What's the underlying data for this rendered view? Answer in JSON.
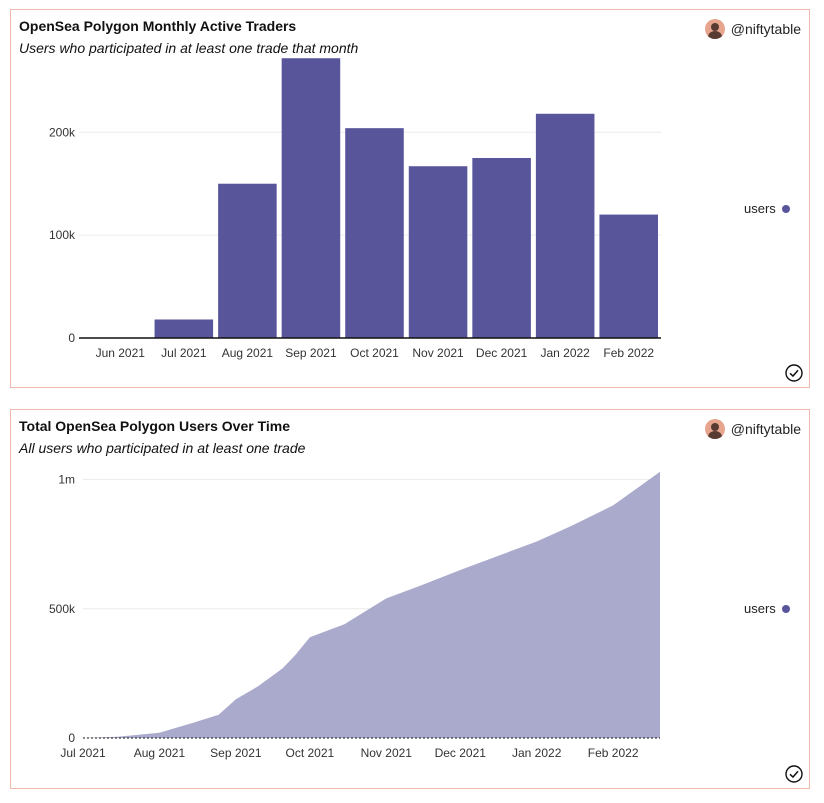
{
  "colors": {
    "bar": "#58559b",
    "area": "#aaaacd",
    "border": "#f2b9ad"
  },
  "author": {
    "handle": "@niftytable",
    "avatar_icon": "user-avatar-icon"
  },
  "chart_data": [
    {
      "type": "bar",
      "title": "OpenSea Polygon Monthly Active Traders",
      "subtitle": "Users who participated in at least one trade that month",
      "categories": [
        "Jun 2021",
        "Jul 2021",
        "Aug 2021",
        "Sep 2021",
        "Oct 2021",
        "Nov 2021",
        "Dec 2021",
        "Jan 2022",
        "Feb 2022"
      ],
      "series": [
        {
          "name": "users",
          "values": [
            500,
            18000,
            150000,
            272000,
            204000,
            167000,
            175000,
            218000,
            120000
          ]
        }
      ],
      "yticks": [
        0,
        100000,
        200000
      ],
      "ytick_labels": [
        "0",
        "100k",
        "200k"
      ],
      "ylim": [
        0,
        280000
      ],
      "grid": true,
      "legend": "right"
    },
    {
      "type": "area",
      "title": "Total OpenSea Polygon Users Over Time",
      "subtitle": "All users who participated in at least one trade",
      "xticks": [
        "Jul 2021",
        "Aug 2021",
        "Sep 2021",
        "Oct 2021",
        "Nov 2021",
        "Dec 2021",
        "Jan 2022",
        "Feb 2022"
      ],
      "x": [
        "2021-07-01",
        "2021-07-15",
        "2021-08-01",
        "2021-08-15",
        "2021-08-25",
        "2021-09-01",
        "2021-09-10",
        "2021-09-20",
        "2021-09-25",
        "2021-10-01",
        "2021-10-15",
        "2021-11-01",
        "2021-11-15",
        "2021-12-01",
        "2021-12-15",
        "2022-01-01",
        "2022-01-15",
        "2022-02-01",
        "2022-02-20"
      ],
      "series": [
        {
          "name": "users",
          "values": [
            0,
            5000,
            20000,
            60000,
            90000,
            150000,
            200000,
            270000,
            320000,
            390000,
            440000,
            540000,
            590000,
            650000,
            700000,
            760000,
            820000,
            900000,
            1030000
          ]
        }
      ],
      "yticks": [
        0,
        500000,
        1000000
      ],
      "ytick_labels": [
        "0",
        "500k",
        "1m"
      ],
      "ylim": [
        0,
        1060000
      ],
      "grid": true,
      "legend": "right"
    }
  ]
}
